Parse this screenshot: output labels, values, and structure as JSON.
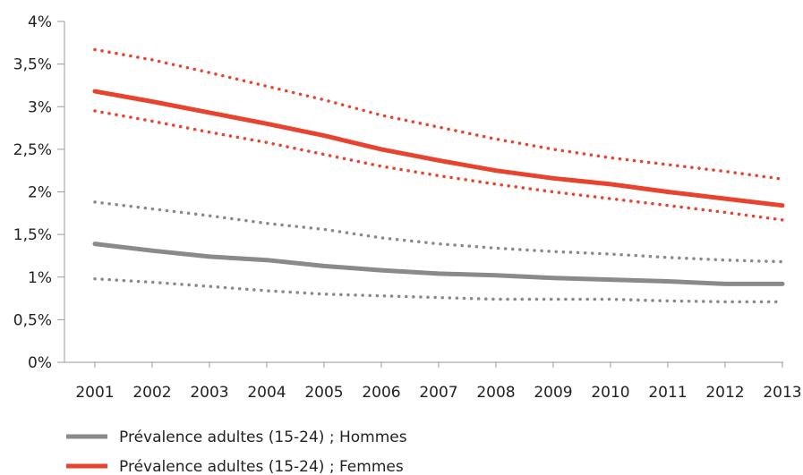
{
  "chart_data": {
    "type": "line",
    "title": "",
    "xlabel": "",
    "ylabel": "",
    "x": [
      "2001",
      "2002",
      "2003",
      "2004",
      "2005",
      "2006",
      "2007",
      "2008",
      "2009",
      "2010",
      "2011",
      "2012",
      "2013"
    ],
    "ylim": [
      0,
      4
    ],
    "yticks": [
      {
        "value": 0,
        "label": "0%"
      },
      {
        "value": 0.5,
        "label": "0,5%"
      },
      {
        "value": 1,
        "label": "1%"
      },
      {
        "value": 1.5,
        "label": "1,5%"
      },
      {
        "value": 2,
        "label": "2%"
      },
      {
        "value": 2.5,
        "label": "2,5%"
      },
      {
        "value": 3,
        "label": "3%"
      },
      {
        "value": 3.5,
        "label": "3,5%"
      },
      {
        "value": 4,
        "label": "4%"
      }
    ],
    "grid": false,
    "legend_position": "bottom-left",
    "series": [
      {
        "name": "Prévalence adultes (15-24) ; Hommes",
        "color": "#8a8a8a",
        "style": "solid",
        "values": [
          1.39,
          1.31,
          1.24,
          1.2,
          1.13,
          1.08,
          1.04,
          1.02,
          0.99,
          0.97,
          0.95,
          0.92,
          0.92
        ]
      },
      {
        "color": "#8a8a8a",
        "style": "dotted",
        "values": [
          1.88,
          1.8,
          1.72,
          1.63,
          1.56,
          1.46,
          1.39,
          1.34,
          1.3,
          1.27,
          1.23,
          1.2,
          1.18
        ]
      },
      {
        "color": "#8a8a8a",
        "style": "dotted",
        "values": [
          0.98,
          0.94,
          0.89,
          0.84,
          0.8,
          0.78,
          0.76,
          0.74,
          0.74,
          0.74,
          0.72,
          0.71,
          0.71
        ]
      },
      {
        "name": "Prévalence adultes (15-24) ; Femmes",
        "color": "#e8432f",
        "style": "solid",
        "values": [
          3.18,
          3.06,
          2.93,
          2.8,
          2.66,
          2.5,
          2.37,
          2.25,
          2.16,
          2.09,
          2.0,
          1.92,
          1.84
        ]
      },
      {
        "color": "#e8432f",
        "style": "dotted",
        "values": [
          3.67,
          3.55,
          3.4,
          3.24,
          3.08,
          2.9,
          2.76,
          2.62,
          2.5,
          2.4,
          2.32,
          2.24,
          2.15
        ]
      },
      {
        "color": "#e8432f",
        "style": "dotted",
        "values": [
          2.95,
          2.83,
          2.7,
          2.58,
          2.44,
          2.3,
          2.19,
          2.09,
          2.0,
          1.92,
          1.84,
          1.76,
          1.67
        ]
      }
    ]
  }
}
